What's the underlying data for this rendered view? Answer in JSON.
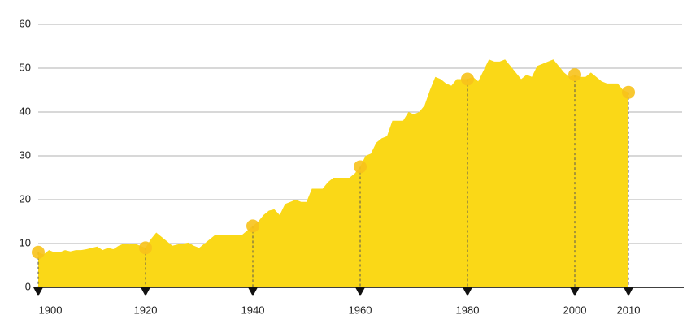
{
  "chart_data": {
    "type": "area",
    "color": "#fad817",
    "marker_color": "#f7c21b",
    "x": [
      1900,
      1901,
      1902,
      1903,
      1904,
      1905,
      1906,
      1907,
      1908,
      1909,
      1910,
      1911,
      1912,
      1913,
      1914,
      1915,
      1916,
      1917,
      1918,
      1919,
      1920,
      1921,
      1922,
      1923,
      1924,
      1925,
      1926,
      1927,
      1928,
      1929,
      1930,
      1931,
      1932,
      1933,
      1934,
      1935,
      1936,
      1937,
      1938,
      1939,
      1940,
      1941,
      1942,
      1943,
      1944,
      1945,
      1946,
      1947,
      1948,
      1949,
      1950,
      1951,
      1952,
      1953,
      1954,
      1955,
      1956,
      1957,
      1958,
      1959,
      1960,
      1961,
      1962,
      1963,
      1964,
      1965,
      1966,
      1967,
      1968,
      1969,
      1970,
      1971,
      1972,
      1973,
      1974,
      1975,
      1976,
      1977,
      1978,
      1979,
      1980,
      1981,
      1982,
      1983,
      1984,
      1985,
      1986,
      1987,
      1988,
      1989,
      1990,
      1991,
      1992,
      1993,
      1994,
      1995,
      1996,
      1997,
      1998,
      1999,
      2000,
      2001,
      2002,
      2003,
      2004,
      2005,
      2006,
      2007,
      2008,
      2009,
      2010
    ],
    "values": [
      8,
      7.5,
      8.5,
      8,
      8,
      8.5,
      8.2,
      8.5,
      8.5,
      8.7,
      9,
      9.3,
      8.5,
      9,
      8.7,
      9.5,
      10,
      9.8,
      10,
      9.5,
      9,
      11,
      12.5,
      11.5,
      10.5,
      9.5,
      9.8,
      10,
      10.2,
      9.5,
      9,
      10,
      11,
      12,
      12,
      12,
      12,
      12,
      12,
      13,
      14,
      15,
      16.5,
      17.5,
      17.8,
      16.5,
      19,
      19.5,
      20,
      19.5,
      19.5,
      22.5,
      22.5,
      22.5,
      24,
      25,
      25,
      25,
      25,
      26,
      27.5,
      30,
      30.5,
      33,
      34,
      34.5,
      38,
      38,
      38,
      40,
      39.5,
      40,
      41.5,
      45,
      48,
      47.5,
      46.5,
      46,
      47.5,
      47.5,
      47.5,
      48,
      47,
      49.5,
      52,
      51.5,
      51.5,
      52,
      50.5,
      49,
      47.5,
      48.5,
      48,
      50.5,
      51,
      51.5,
      52,
      50.5,
      49,
      48,
      48.5,
      48,
      48,
      49,
      48,
      47,
      46.5,
      46.5,
      46.5,
      45,
      44.5
    ],
    "xlim": [
      1900,
      2020
    ],
    "xticks": [
      1900,
      1920,
      1940,
      1960,
      1980,
      2000,
      2010
    ],
    "ylim": [
      0,
      60
    ],
    "yticks": [
      0,
      10,
      20,
      30,
      40,
      50,
      60
    ],
    "grid": true
  }
}
